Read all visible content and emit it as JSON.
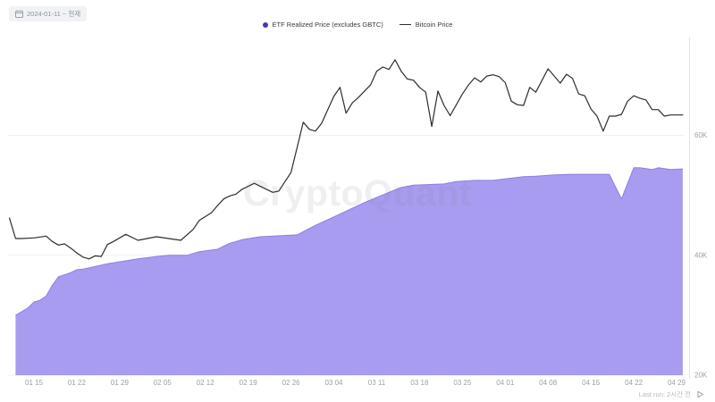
{
  "header": {
    "date_range": {
      "icon": "calendar-icon",
      "label": "2024-01-11 ~ 현재"
    }
  },
  "legend": [
    {
      "name": "ETF Realized Price (excludes GBTC)",
      "marker": "dot",
      "color": "#4338b2"
    },
    {
      "name": "Bitcoin Price",
      "marker": "line",
      "color": "#2d2d2d"
    }
  ],
  "watermark": "CryptoQuant",
  "footer": {
    "last_run_label": "Last run: 2시간 전",
    "icon": "play-icon"
  },
  "chart_data": {
    "type": "mixed",
    "legend_position": "top-center",
    "grid": true,
    "x_axis": {
      "ticks": [
        "01 15",
        "01 22",
        "01 29",
        "02 05",
        "02 12",
        "02 19",
        "02 26",
        "03 04",
        "03 11",
        "03 18",
        "03 25",
        "04 01",
        "04 08",
        "04 15",
        "04 22",
        "04 29"
      ],
      "start_date": "2024-01-11",
      "end_date": "2024-04-30"
    },
    "y_axis": {
      "ticks": [
        {
          "label": "60K",
          "value": 60000
        },
        {
          "label": "40K",
          "value": 40000
        },
        {
          "label": "20K",
          "value": 20000
        }
      ],
      "range": [
        20000,
        76300
      ],
      "side": "right"
    },
    "series": [
      {
        "name": "ETF Realized Price (excludes GBTC)",
        "type": "area",
        "fill": "#a89cf0",
        "stroke": "#8d7fe0",
        "points": [
          [
            "01-12",
            30000
          ],
          [
            "01-14",
            31200
          ],
          [
            "01-15",
            32200
          ],
          [
            "01-16",
            32500
          ],
          [
            "01-17",
            33200
          ],
          [
            "01-18",
            35000
          ],
          [
            "01-19",
            36400
          ],
          [
            "01-21",
            37100
          ],
          [
            "01-22",
            37600
          ],
          [
            "01-23",
            37700
          ],
          [
            "01-24",
            37900
          ],
          [
            "01-27",
            38600
          ],
          [
            "02-01",
            39400
          ],
          [
            "02-04",
            39800
          ],
          [
            "02-06",
            40000
          ],
          [
            "02-09",
            40000
          ],
          [
            "02-11",
            40600
          ],
          [
            "02-14",
            41000
          ],
          [
            "02-16",
            42000
          ],
          [
            "02-18",
            42600
          ],
          [
            "02-21",
            43100
          ],
          [
            "02-27",
            43400
          ],
          [
            "03-01",
            45000
          ],
          [
            "03-04",
            46400
          ],
          [
            "03-09",
            48800
          ],
          [
            "03-13",
            50500
          ],
          [
            "03-15",
            51300
          ],
          [
            "03-17",
            51700
          ],
          [
            "03-22",
            51900
          ],
          [
            "03-24",
            52300
          ],
          [
            "03-27",
            52500
          ],
          [
            "03-30",
            52500
          ],
          [
            "04-04",
            53100
          ],
          [
            "04-06",
            53200
          ],
          [
            "04-09",
            53400
          ],
          [
            "04-12",
            53500
          ],
          [
            "04-18",
            53500
          ],
          [
            "04-20",
            49400
          ],
          [
            "04-22",
            54600
          ],
          [
            "04-23",
            54600
          ],
          [
            "04-25",
            54300
          ],
          [
            "04-26",
            54600
          ],
          [
            "04-28",
            54300
          ],
          [
            "04-30",
            54400
          ]
        ]
      },
      {
        "name": "Bitcoin Price",
        "type": "line",
        "stroke": "#2d2d2d",
        "points": [
          [
            "01-11",
            46200
          ],
          [
            "01-12",
            42800
          ],
          [
            "01-13",
            42800
          ],
          [
            "01-15",
            42900
          ],
          [
            "01-17",
            43200
          ],
          [
            "01-18",
            42300
          ],
          [
            "01-19",
            41700
          ],
          [
            "01-20",
            41900
          ],
          [
            "01-21",
            41200
          ],
          [
            "01-22",
            40400
          ],
          [
            "01-23",
            39700
          ],
          [
            "01-24",
            39400
          ],
          [
            "01-25",
            39900
          ],
          [
            "01-26",
            39800
          ],
          [
            "01-27",
            41800
          ],
          [
            "01-28",
            42300
          ],
          [
            "01-30",
            43500
          ],
          [
            "02-01",
            42500
          ],
          [
            "02-04",
            43100
          ],
          [
            "02-08",
            42500
          ],
          [
            "02-10",
            44300
          ],
          [
            "02-11",
            45800
          ],
          [
            "02-13",
            47100
          ],
          [
            "02-14",
            48300
          ],
          [
            "02-15",
            49400
          ],
          [
            "02-16",
            49900
          ],
          [
            "02-17",
            50200
          ],
          [
            "02-18",
            51000
          ],
          [
            "02-20",
            52000
          ],
          [
            "02-23",
            50500
          ],
          [
            "02-24",
            50700
          ],
          [
            "02-26",
            53800
          ],
          [
            "02-27",
            58000
          ],
          [
            "02-28",
            62200
          ],
          [
            "02-29",
            61000
          ],
          [
            "03-01",
            60700
          ],
          [
            "03-02",
            62000
          ],
          [
            "03-04",
            66500
          ],
          [
            "03-05",
            68000
          ],
          [
            "03-06",
            63700
          ],
          [
            "03-07",
            65400
          ],
          [
            "03-08",
            66300
          ],
          [
            "03-10",
            68400
          ],
          [
            "03-11",
            70700
          ],
          [
            "03-12",
            71400
          ],
          [
            "03-13",
            71000
          ],
          [
            "03-14",
            72600
          ],
          [
            "03-15",
            70700
          ],
          [
            "03-16",
            69400
          ],
          [
            "03-17",
            69200
          ],
          [
            "03-18",
            68000
          ],
          [
            "03-19",
            67200
          ],
          [
            "03-20",
            61500
          ],
          [
            "03-21",
            67400
          ],
          [
            "03-22",
            65000
          ],
          [
            "03-23",
            63300
          ],
          [
            "03-25",
            66900
          ],
          [
            "03-26",
            68400
          ],
          [
            "03-27",
            69600
          ],
          [
            "03-28",
            68900
          ],
          [
            "03-29",
            69900
          ],
          [
            "03-30",
            70100
          ],
          [
            "03-31",
            69800
          ],
          [
            "04-01",
            68800
          ],
          [
            "04-02",
            65700
          ],
          [
            "04-03",
            65100
          ],
          [
            "04-04",
            65000
          ],
          [
            "04-05",
            68000
          ],
          [
            "04-06",
            67200
          ],
          [
            "04-08",
            71100
          ],
          [
            "04-09",
            69900
          ],
          [
            "04-10",
            68700
          ],
          [
            "04-11",
            70200
          ],
          [
            "04-12",
            69500
          ],
          [
            "04-13",
            66900
          ],
          [
            "04-14",
            66600
          ],
          [
            "04-15",
            64400
          ],
          [
            "04-16",
            63200
          ],
          [
            "04-17",
            60700
          ],
          [
            "04-18",
            63200
          ],
          [
            "04-19",
            63200
          ],
          [
            "04-20",
            63500
          ],
          [
            "04-21",
            65700
          ],
          [
            "04-22",
            66600
          ],
          [
            "04-23",
            66200
          ],
          [
            "04-24",
            65900
          ],
          [
            "04-25",
            64300
          ],
          [
            "04-26",
            64300
          ],
          [
            "04-27",
            63200
          ],
          [
            "04-28",
            63400
          ],
          [
            "04-30",
            63400
          ]
        ]
      }
    ]
  }
}
